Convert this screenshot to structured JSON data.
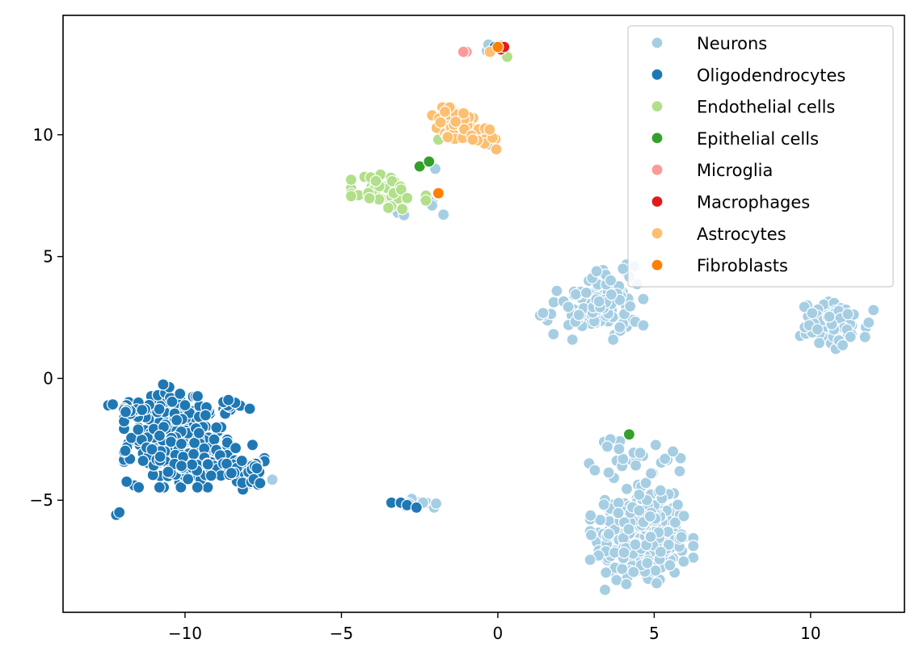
{
  "chart_data": {
    "type": "scatter",
    "title": "",
    "xlabel": "",
    "ylabel": "",
    "xlim": [
      -13.9,
      13.0
    ],
    "ylim": [
      -9.6,
      14.9
    ],
    "xticks": [
      -10,
      -5,
      0,
      5,
      10
    ],
    "xtick_labels": [
      "−10",
      "−5",
      "0",
      "5",
      "10"
    ],
    "yticks": [
      -5,
      0,
      5,
      10
    ],
    "ytick_labels": [
      "−5",
      "0",
      "5",
      "10"
    ],
    "grid": false,
    "legend_position": "top-right",
    "series": [
      {
        "name": "Neurons",
        "color": "#a6cee3",
        "clusters": [
          {
            "cx": 4.6,
            "cy": -6.7,
            "sx": 0.75,
            "sy": 0.9,
            "n": 260
          },
          {
            "cx": 4.6,
            "cy": -5.2,
            "sx": 0.55,
            "sy": 0.45,
            "n": 60
          },
          {
            "cx": 4.6,
            "cy": -3.3,
            "sx": 0.8,
            "sy": 0.4,
            "n": 25
          },
          {
            "cx": 3.0,
            "cy": 2.8,
            "sx": 0.75,
            "sy": 0.55,
            "n": 90
          },
          {
            "cx": 3.6,
            "cy": 3.8,
            "sx": 0.35,
            "sy": 0.4,
            "n": 20
          },
          {
            "cx": 10.8,
            "cy": 2.2,
            "sx": 0.55,
            "sy": 0.45,
            "n": 90
          },
          {
            "cx": -2.6,
            "cy": -5.2,
            "sx": 0.3,
            "sy": 0.12,
            "n": 10
          },
          {
            "cx": -7.8,
            "cy": -4.0,
            "sx": 0.3,
            "sy": 0.25,
            "n": 10
          },
          {
            "cx": -0.1,
            "cy": 13.6,
            "sx": 0.12,
            "sy": 0.08,
            "n": 3
          },
          {
            "cx": -2.4,
            "cy": 7.6,
            "sx": 0.5,
            "sy": 0.5,
            "n": 5
          },
          {
            "cx": -0.3,
            "cy": 9.8,
            "sx": 0.15,
            "sy": 0.15,
            "n": 3
          }
        ],
        "points": [
          [
            -0.3,
            9.6
          ],
          [
            -2.0,
            8.6
          ],
          [
            -2.1,
            7.1
          ],
          [
            -3.2,
            6.8
          ],
          [
            -3.0,
            6.7
          ],
          [
            -0.3,
            13.7
          ],
          [
            3.6,
            -2.5
          ],
          [
            3.5,
            -2.8
          ],
          [
            5.6,
            -3.0
          ],
          [
            5.2,
            -4.6
          ],
          [
            4.9,
            -3.9
          ],
          [
            3.9,
            2.1
          ],
          [
            4.0,
            4.5
          ],
          [
            -8.2,
            -4.1
          ]
        ]
      },
      {
        "name": "Oligodendrocytes",
        "color": "#1f78b4",
        "clusters": [
          {
            "cx": -10.3,
            "cy": -2.6,
            "sx": 0.75,
            "sy": 0.85,
            "n": 280
          },
          {
            "cx": -9.0,
            "cy": -3.5,
            "sx": 0.7,
            "sy": 0.35,
            "n": 50
          },
          {
            "cx": -7.9,
            "cy": -3.9,
            "sx": 0.35,
            "sy": 0.3,
            "n": 25
          },
          {
            "cx": -11.8,
            "cy": -1.2,
            "sx": 0.4,
            "sy": 0.15,
            "n": 15
          },
          {
            "cx": -8.7,
            "cy": -1.2,
            "sx": 0.35,
            "sy": 0.2,
            "n": 12
          },
          {
            "cx": -10.6,
            "cy": -0.6,
            "sx": 0.2,
            "sy": 0.2,
            "n": 8
          }
        ],
        "points": [
          [
            -12.2,
            -5.6
          ],
          [
            -12.1,
            -5.5
          ],
          [
            -3.4,
            -5.1
          ],
          [
            -3.1,
            -5.1
          ],
          [
            -2.9,
            -5.2
          ],
          [
            -2.6,
            -5.3
          ],
          [
            -3.3,
            8.1
          ],
          [
            -0.1,
            13.6
          ],
          [
            -11.5,
            -2.1
          ],
          [
            -10.0,
            -1.1
          ],
          [
            -7.6,
            -4.3
          ]
        ]
      },
      {
        "name": "Endothelial cells",
        "color": "#b2df8a",
        "clusters": [
          {
            "cx": -3.7,
            "cy": 7.7,
            "sx": 0.45,
            "sy": 0.4,
            "n": 45
          }
        ],
        "points": [
          [
            -1.9,
            9.8
          ],
          [
            -2.3,
            7.5
          ],
          [
            -2.3,
            7.3
          ],
          [
            -2.9,
            7.4
          ],
          [
            0.3,
            13.2
          ],
          [
            -3.9,
            8.1
          ],
          [
            -3.5,
            7.0
          ]
        ]
      },
      {
        "name": "Epithelial cells",
        "color": "#33a02c",
        "clusters": [],
        "points": [
          [
            -2.5,
            8.7
          ],
          [
            -2.2,
            8.9
          ],
          [
            4.2,
            -2.3
          ]
        ]
      },
      {
        "name": "Microglia",
        "color": "#fb9a99",
        "clusters": [],
        "points": [
          [
            -1.0,
            13.4
          ],
          [
            -1.1,
            13.4
          ]
        ]
      },
      {
        "name": "Macrophages",
        "color": "#e31a1c",
        "clusters": [],
        "points": [
          [
            0.1,
            13.5
          ],
          [
            0.2,
            13.6
          ]
        ]
      },
      {
        "name": "Astrocytes",
        "color": "#fdbf6f",
        "clusters": [
          {
            "cx": -1.3,
            "cy": 10.4,
            "sx": 0.4,
            "sy": 0.35,
            "n": 60
          },
          {
            "cx": -0.4,
            "cy": 10.0,
            "sx": 0.2,
            "sy": 0.2,
            "n": 10
          }
        ],
        "points": [
          [
            -0.05,
            9.4
          ],
          [
            -0.25,
            13.4
          ],
          [
            -0.8,
            9.8
          ],
          [
            -1.6,
            9.9
          ]
        ]
      },
      {
        "name": "Fibroblasts",
        "color": "#ff7f00",
        "clusters": [],
        "points": [
          [
            -1.9,
            7.6
          ],
          [
            0.0,
            13.6
          ]
        ]
      }
    ]
  }
}
